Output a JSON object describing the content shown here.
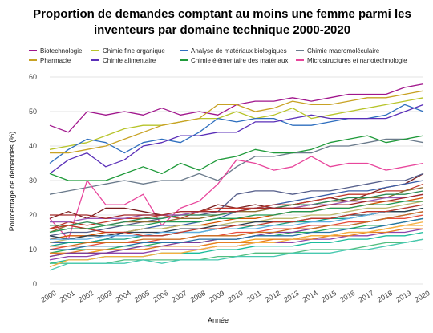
{
  "chart_data": {
    "type": "line",
    "title_line1": "Proportion de demandes comptant au moins une femme parmi les",
    "title_line2": "inventeurs par domaine technique 2000-2020",
    "xlabel": "Année",
    "ylabel": "Pourcentage de demandes (%)",
    "ylim": [
      0,
      60
    ],
    "yticks": [
      0,
      10,
      20,
      30,
      40,
      50,
      60
    ],
    "grid": true,
    "legend_position": "top",
    "x": [
      2000,
      2001,
      2002,
      2003,
      2004,
      2005,
      2006,
      2007,
      2008,
      2009,
      2010,
      2011,
      2012,
      2013,
      2014,
      2015,
      2016,
      2017,
      2018,
      2019,
      2020
    ],
    "series": [
      {
        "name": "Biotechnologie",
        "color": "#a0158c",
        "legend": true,
        "values": [
          46,
          44,
          50,
          49,
          50,
          49,
          51,
          49,
          50,
          49,
          52,
          53,
          53,
          54,
          53,
          54,
          55,
          55,
          55,
          57,
          58
        ]
      },
      {
        "name": "Chimie fine organique",
        "color": "#b7c42a",
        "legend": true,
        "values": [
          39,
          40,
          41,
          43,
          45,
          46,
          46,
          47,
          48,
          48,
          50,
          48,
          49,
          51,
          48,
          49,
          50,
          51,
          52,
          53,
          54
        ]
      },
      {
        "name": "Analyse de matériaux biologiques",
        "color": "#2f6fbf",
        "legend": true,
        "values": [
          35,
          39,
          42,
          41,
          38,
          41,
          42,
          41,
          44,
          48,
          47,
          48,
          48,
          46,
          46,
          47,
          48,
          48,
          49,
          52,
          50
        ]
      },
      {
        "name": "Chimie macromoléculaire",
        "color": "#6b7b8c",
        "legend": true,
        "values": [
          26,
          27,
          28,
          29,
          30,
          29,
          30,
          30,
          32,
          30,
          34,
          37,
          37,
          38,
          38,
          40,
          40,
          41,
          42,
          42,
          41
        ]
      },
      {
        "name": "Pharmacie",
        "color": "#c8a224",
        "legend": true,
        "values": [
          38,
          38,
          39,
          40,
          42,
          44,
          46,
          47,
          48,
          52,
          52,
          50,
          51,
          53,
          52,
          52,
          53,
          54,
          54,
          55,
          56
        ]
      },
      {
        "name": "Chimie alimentaire",
        "color": "#5a2fb8",
        "legend": true,
        "values": [
          32,
          36,
          38,
          34,
          36,
          40,
          41,
          43,
          43,
          44,
          44,
          47,
          47,
          48,
          49,
          48,
          48,
          48,
          48,
          50,
          52
        ]
      },
      {
        "name": "Chimie élémentaire des matériaux",
        "color": "#1f9a3a",
        "legend": true,
        "values": [
          32,
          30,
          30,
          30,
          32,
          34,
          32,
          35,
          33,
          36,
          37,
          39,
          38,
          38,
          39,
          41,
          42,
          43,
          41,
          42,
          43
        ]
      },
      {
        "name": "Microstructures et nanotechnologie",
        "color": "#e8469c",
        "legend": true,
        "values": [
          19,
          13,
          30,
          23,
          23,
          26,
          17,
          22,
          24,
          29,
          36,
          35,
          33,
          34,
          37,
          34,
          35,
          35,
          33,
          34,
          35
        ]
      },
      {
        "name": "",
        "color": "#7a1e1e",
        "legend": false,
        "values": [
          19,
          21,
          19,
          22,
          22,
          21,
          20,
          20,
          21,
          23,
          22,
          23,
          22,
          23,
          24,
          25,
          24,
          26,
          28,
          29,
          32
        ]
      },
      {
        "name": "",
        "color": "#3b5fa8",
        "legend": false,
        "values": [
          12,
          12,
          12,
          13,
          15,
          16,
          17,
          17,
          18,
          19,
          21,
          22,
          23,
          24,
          25,
          26,
          27,
          27,
          28,
          29,
          30
        ]
      },
      {
        "name": "",
        "color": "#555e8a",
        "legend": false,
        "values": [
          14,
          15,
          15,
          16,
          17,
          18,
          19,
          20,
          20,
          21,
          26,
          27,
          27,
          26,
          27,
          27,
          28,
          29,
          30,
          30,
          32
        ]
      },
      {
        "name": "",
        "color": "#c0392b",
        "legend": false,
        "values": [
          16,
          18,
          17,
          18,
          19,
          19,
          20,
          19,
          21,
          22,
          22,
          22,
          23,
          23,
          24,
          25,
          26,
          26,
          27,
          27,
          29
        ]
      },
      {
        "name": "",
        "color": "#8e6c2f",
        "legend": false,
        "values": [
          15,
          17,
          16,
          17,
          18,
          18,
          18,
          19,
          19,
          20,
          21,
          21,
          22,
          22,
          23,
          24,
          24,
          25,
          25,
          27,
          28
        ]
      },
      {
        "name": "",
        "color": "#2e8b57",
        "legend": false,
        "values": [
          17,
          17,
          18,
          17,
          18,
          19,
          19,
          20,
          20,
          20,
          21,
          22,
          22,
          23,
          23,
          24,
          25,
          25,
          26,
          26,
          27
        ]
      },
      {
        "name": "",
        "color": "#d35400",
        "legend": false,
        "values": [
          13,
          14,
          14,
          15,
          15,
          16,
          16,
          17,
          17,
          18,
          19,
          19,
          20,
          21,
          21,
          22,
          22,
          23,
          24,
          24,
          25
        ]
      },
      {
        "name": "",
        "color": "#9b59b6",
        "legend": false,
        "values": [
          18,
          18,
          19,
          19,
          19,
          20,
          20,
          20,
          21,
          21,
          21,
          22,
          22,
          22,
          23,
          23,
          24,
          24,
          25,
          25,
          26
        ]
      },
      {
        "name": "",
        "color": "#bdb76b",
        "legend": false,
        "values": [
          12,
          13,
          14,
          14,
          15,
          16,
          16,
          17,
          17,
          17,
          18,
          18,
          19,
          19,
          20,
          20,
          21,
          22,
          22,
          23,
          24
        ]
      },
      {
        "name": "",
        "color": "#16a085",
        "legend": false,
        "values": [
          11,
          12,
          12,
          13,
          13,
          14,
          14,
          15,
          15,
          16,
          16,
          17,
          17,
          18,
          18,
          19,
          19,
          20,
          21,
          21,
          22
        ]
      },
      {
        "name": "",
        "color": "#e74c3c",
        "legend": false,
        "values": [
          10,
          11,
          11,
          12,
          12,
          12,
          13,
          13,
          14,
          14,
          15,
          15,
          16,
          16,
          17,
          17,
          18,
          18,
          19,
          19,
          20
        ]
      },
      {
        "name": "",
        "color": "#27ae60",
        "legend": false,
        "values": [
          9,
          10,
          10,
          10,
          11,
          11,
          12,
          12,
          12,
          13,
          13,
          14,
          14,
          15,
          15,
          16,
          16,
          17,
          17,
          18,
          19
        ]
      },
      {
        "name": "",
        "color": "#f39c12",
        "legend": false,
        "values": [
          8,
          9,
          9,
          10,
          10,
          10,
          11,
          11,
          11,
          12,
          12,
          13,
          13,
          13,
          14,
          14,
          15,
          15,
          16,
          17,
          17
        ]
      },
      {
        "name": "",
        "color": "#8e44ad",
        "legend": false,
        "values": [
          7,
          8,
          8,
          9,
          9,
          9,
          10,
          10,
          10,
          11,
          11,
          12,
          12,
          12,
          13,
          13,
          14,
          14,
          15,
          15,
          16
        ]
      },
      {
        "name": "",
        "color": "#1abc9c",
        "legend": false,
        "values": [
          6,
          7,
          7,
          8,
          8,
          8,
          9,
          9,
          9,
          10,
          10,
          11,
          11,
          11,
          12,
          12,
          13,
          13,
          14,
          14,
          15
        ]
      },
      {
        "name": "",
        "color": "#e67e22",
        "legend": false,
        "values": [
          9,
          9,
          10,
          10,
          10,
          10,
          11,
          11,
          11,
          12,
          12,
          12,
          13,
          13,
          13,
          14,
          14,
          15,
          15,
          16,
          16
        ]
      },
      {
        "name": "",
        "color": "#2c3e50",
        "legend": false,
        "values": [
          14,
          13,
          14,
          14,
          15,
          15,
          15,
          16,
          16,
          17,
          17,
          18,
          18,
          18,
          19,
          19,
          20,
          20,
          21,
          21,
          22
        ]
      },
      {
        "name": "",
        "color": "#a52a2a",
        "legend": false,
        "values": [
          20,
          20,
          20,
          19,
          20,
          20,
          20,
          21,
          21,
          21,
          21,
          22,
          22,
          22,
          22,
          23,
          23,
          24,
          24,
          25,
          26
        ]
      },
      {
        "name": "",
        "color": "#5dade2",
        "legend": false,
        "values": [
          13,
          13,
          13,
          14,
          14,
          14,
          15,
          15,
          15,
          16,
          16,
          16,
          17,
          17,
          18,
          18,
          19,
          20,
          21,
          22,
          23
        ]
      },
      {
        "name": "",
        "color": "#52be80",
        "legend": false,
        "values": [
          6,
          6,
          6,
          6,
          7,
          7,
          7,
          7,
          7,
          8,
          8,
          9,
          9,
          9,
          10,
          10,
          10,
          11,
          12,
          12,
          13
        ]
      },
      {
        "name": "",
        "color": "#48c9b0",
        "legend": false,
        "values": [
          4,
          6,
          6,
          6,
          6,
          7,
          6,
          7,
          7,
          7,
          8,
          8,
          8,
          9,
          9,
          9,
          10,
          10,
          11,
          12,
          13
        ]
      },
      {
        "name": "",
        "color": "#f5b041",
        "legend": false,
        "values": [
          5,
          7,
          7,
          8,
          8,
          8,
          9,
          9,
          10,
          11,
          11,
          12,
          12,
          13,
          14,
          14,
          15,
          15,
          16,
          17,
          18
        ]
      },
      {
        "name": "",
        "color": "#c0392b",
        "legend": false,
        "values": [
          16,
          17,
          16,
          15,
          15,
          14,
          14,
          15,
          16,
          16,
          17,
          17,
          18,
          18,
          19,
          19,
          20,
          21,
          21,
          22,
          23
        ]
      },
      {
        "name": "",
        "color": "#7d3c98",
        "legend": false,
        "values": [
          8,
          9,
          9,
          9,
          10,
          11,
          11,
          12,
          12,
          13,
          13,
          14,
          15,
          15,
          16,
          17,
          17,
          18,
          19,
          20,
          21
        ]
      },
      {
        "name": "",
        "color": "#229954",
        "legend": false,
        "values": [
          15,
          16,
          16,
          17,
          17,
          17,
          18,
          18,
          18,
          19,
          19,
          20,
          20,
          21,
          21,
          22,
          22,
          23,
          23,
          24,
          24
        ]
      },
      {
        "name": "",
        "color": "#ca6f1e",
        "legend": false,
        "values": [
          11,
          11,
          12,
          12,
          12,
          13,
          13,
          13,
          14,
          14,
          14,
          15,
          15,
          16,
          16,
          17,
          17,
          18,
          19,
          20,
          21
        ]
      },
      {
        "name": "",
        "color": "#2874a6",
        "legend": false,
        "values": [
          10,
          10,
          11,
          11,
          11,
          12,
          12,
          12,
          13,
          13,
          13,
          14,
          14,
          14,
          15,
          15,
          16,
          16,
          17,
          18,
          19
        ]
      }
    ]
  }
}
